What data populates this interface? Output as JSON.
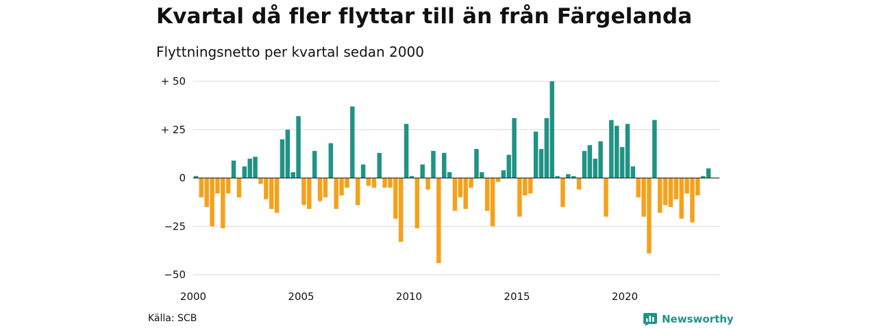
{
  "header": {
    "title": "Kvartal då fler flyttar till än från Färgelanda",
    "subtitle": "Flyttningsnetto per kvartal sedan 2000"
  },
  "footer": {
    "source": "Källa: SCB",
    "brand": "Newsworthy",
    "brand_icon": "bar-chart-logo-icon"
  },
  "colors": {
    "positive": "#1f9384",
    "negative": "#f5a11c",
    "grid": "#d9d9d9",
    "baseline": "#333333",
    "brand": "#1f9384"
  },
  "chart_data": {
    "type": "bar",
    "title": "Kvartal då fler flyttar till än från Färgelanda",
    "subtitle": "Flyttningsnetto per kvartal sedan 2000",
    "xlabel": "",
    "ylabel": "",
    "x_start": "2000 Q1",
    "x_ticks": [
      {
        "label": "2000",
        "year": 2000
      },
      {
        "label": "2005",
        "year": 2005
      },
      {
        "label": "2010",
        "year": 2010
      },
      {
        "label": "2015",
        "year": 2015
      },
      {
        "label": "2020",
        "year": 2020
      }
    ],
    "y_ticks": [
      {
        "label": "+ 50",
        "value": 50
      },
      {
        "label": "+ 25",
        "value": 25
      },
      {
        "label": "0",
        "value": 0
      },
      {
        "label": "−25",
        "value": -25
      },
      {
        "label": "−50",
        "value": -50
      }
    ],
    "ylim": [
      -50,
      50
    ],
    "grid": true,
    "legend": "none",
    "values": [
      1,
      -10,
      -15,
      -25,
      -8,
      -26,
      -8,
      9,
      -10,
      6,
      10,
      11,
      -3,
      -11,
      -16,
      -18,
      20,
      25,
      3,
      32,
      -14,
      -16,
      14,
      -12,
      -10,
      18,
      -16,
      -9,
      -5,
      37,
      -14,
      7,
      -4,
      -5,
      13,
      -5,
      -5,
      -21,
      -33,
      28,
      1,
      -26,
      7,
      -6,
      14,
      -44,
      13,
      3,
      -17,
      -10,
      -16,
      -5,
      15,
      3,
      -17,
      -25,
      -2,
      4,
      12,
      31,
      -20,
      -9,
      -8,
      24,
      15,
      31,
      50,
      1,
      -15,
      2,
      1,
      -6,
      14,
      17,
      10,
      19,
      -20,
      30,
      27,
      16,
      28,
      6,
      -10,
      -20,
      -39,
      30,
      -18,
      -14,
      -15,
      -11,
      -21,
      -8,
      -23,
      -9,
      1,
      5
    ]
  }
}
